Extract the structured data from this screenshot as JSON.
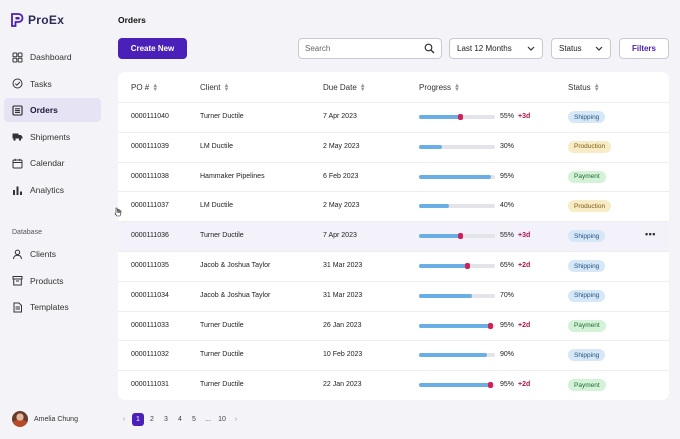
{
  "app": {
    "name": "ProEx"
  },
  "nav": {
    "items": [
      {
        "label": "Dashboard",
        "icon": "grid-icon"
      },
      {
        "label": "Tasks",
        "icon": "check-circle-icon"
      },
      {
        "label": "Orders",
        "icon": "list-icon",
        "active": true
      },
      {
        "label": "Shipments",
        "icon": "truck-icon"
      },
      {
        "label": "Calendar",
        "icon": "calendar-icon"
      },
      {
        "label": "Analytics",
        "icon": "bar-chart-icon"
      }
    ],
    "section_label": "Database",
    "db_items": [
      {
        "label": "Clients",
        "icon": "person-icon"
      },
      {
        "label": "Products",
        "icon": "box-icon"
      },
      {
        "label": "Templates",
        "icon": "document-icon"
      }
    ]
  },
  "user": {
    "name": "Amelia Chung"
  },
  "page": {
    "title": "Orders"
  },
  "toolbar": {
    "create_label": "Create New",
    "search_placeholder": "Search",
    "period_value": "Last 12 Months",
    "status_value": "Status",
    "filters_label": "Filters"
  },
  "table": {
    "columns": [
      "PO #",
      "Client",
      "Due Date",
      "Progress",
      "Status"
    ],
    "rows": [
      {
        "po": "0000111040",
        "client": "Turner Ductile",
        "due": "7 Apr 2023",
        "progress": 55,
        "delta": "+3d",
        "status": "Shipping"
      },
      {
        "po": "0000111039",
        "client": "LM Ductile",
        "due": "2 May 2023",
        "progress": 30,
        "delta": "",
        "status": "Production"
      },
      {
        "po": "0000111038",
        "client": "Hammaker Pipelines",
        "due": "6 Feb 2023",
        "progress": 95,
        "delta": "",
        "status": "Payment"
      },
      {
        "po": "0000111037",
        "client": "LM Ductile",
        "due": "2 May 2023",
        "progress": 40,
        "delta": "",
        "status": "Production"
      },
      {
        "po": "0000111036",
        "client": "Turner Ductile",
        "due": "7 Apr 2023",
        "progress": 55,
        "delta": "+3d",
        "status": "Shipping"
      },
      {
        "po": "0000111035",
        "client": "Jacob & Joshua Taylor",
        "due": "31 Mar 2023",
        "progress": 65,
        "delta": "+2d",
        "status": "Shipping"
      },
      {
        "po": "0000111034",
        "client": "Jacob & Joshua Taylor",
        "due": "31 Mar 2023",
        "progress": 70,
        "delta": "",
        "status": "Shipping"
      },
      {
        "po": "0000111033",
        "client": "Turner Ductile",
        "due": "26 Jan 2023",
        "progress": 95,
        "delta": "+2d",
        "status": "Payment"
      },
      {
        "po": "0000111032",
        "client": "Turner Ductile",
        "due": "10 Feb 2023",
        "progress": 90,
        "delta": "",
        "status": "Shipping"
      },
      {
        "po": "0000111031",
        "client": "Turner Ductile",
        "due": "22 Jan 2023",
        "progress": 95,
        "delta": "+2d",
        "status": "Payment"
      }
    ],
    "row_actions_label": "•••"
  },
  "status_colors": {
    "Shipping": {
      "bg": "#d6e8f8",
      "fg": "#1f4f80"
    },
    "Production": {
      "bg": "#f8ecc6",
      "fg": "#7a5a10"
    },
    "Payment": {
      "bg": "#d4f2d8",
      "fg": "#1f6a2e"
    }
  },
  "colors": {
    "accent": "#4a20b8",
    "progress": "#6aaee6",
    "overdue": "#d0215b"
  },
  "pagination": {
    "pages": [
      "1",
      "2",
      "3",
      "4",
      "5",
      "...",
      "10"
    ],
    "current": "1",
    "prev": "‹",
    "next": "›"
  }
}
